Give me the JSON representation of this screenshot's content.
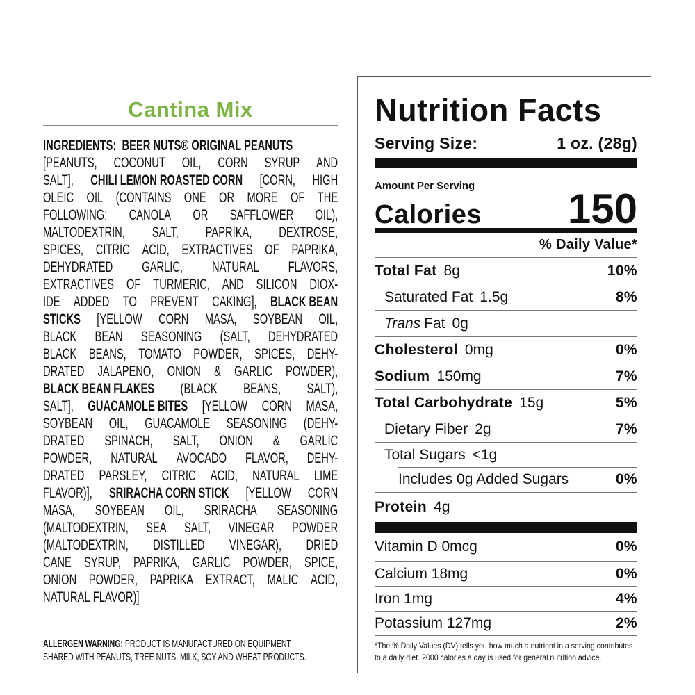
{
  "product": {
    "title": "Cantina Mix",
    "title_color": "#7cb342"
  },
  "ingredients": {
    "lines": [
      [
        {
          "t": "INGREDIENTS:  BEER NUTS® ORIGINAL PEANUTS",
          "b": true
        }
      ],
      [
        {
          "t": "[PEANUTS, COCONUT OIL, CORN SYRUP AND",
          "b": false
        }
      ],
      [
        {
          "t": "SALT],",
          "b": false
        },
        {
          "t": "CHILI LEMON ROASTED CORN",
          "b": true
        },
        {
          "t": "[CORN, HIGH",
          "b": false
        }
      ],
      [
        {
          "t": "OLEIC OIL (CONTAINS ONE OR MORE OF THE",
          "b": false
        }
      ],
      [
        {
          "t": "FOLLOWING: CANOLA OR SAFFLOWER OIL),",
          "b": false
        }
      ],
      [
        {
          "t": "MALTODEXTRIN, SALT, PAPRIKA, DEXTROSE,",
          "b": false
        }
      ],
      [
        {
          "t": "SPICES, CITRIC ACID, EXTRACTIVES OF PAPRIKA,",
          "b": false
        }
      ],
      [
        {
          "t": "DEHYDRATED GARLIC, NATURAL FLAVORS,",
          "b": false
        }
      ],
      [
        {
          "t": "EXTRACTIVES OF TURMERIC, AND SILICON DIOX-",
          "b": false
        }
      ],
      [
        {
          "t": "IDE ADDED TO PREVENT CAKING],",
          "b": false
        },
        {
          "t": "BLACK BEAN",
          "b": true
        }
      ],
      [
        {
          "t": "STICKS",
          "b": true
        },
        {
          "t": "[YELLOW CORN MASA, SOYBEAN OIL,",
          "b": false
        }
      ],
      [
        {
          "t": "BLACK BEAN SEASONING (SALT, DEHYDRATED",
          "b": false
        }
      ],
      [
        {
          "t": "BLACK BEANS, TOMATO POWDER, SPICES, DEHY-",
          "b": false
        }
      ],
      [
        {
          "t": "DRATED JALAPENO, ONION & GARLIC POWDER),",
          "b": false
        }
      ],
      [
        {
          "t": "BLACK BEAN FLAKES",
          "b": true
        },
        {
          "t": "(BLACK BEANS, SALT),",
          "b": false
        }
      ],
      [
        {
          "t": "SALT],",
          "b": false
        },
        {
          "t": "GUACAMOLE BITES",
          "b": true
        },
        {
          "t": "[YELLOW CORN MASA,",
          "b": false
        }
      ],
      [
        {
          "t": "SOYBEAN OIL, GUACAMOLE SEASONING (DEHY-",
          "b": false
        }
      ],
      [
        {
          "t": "DRATED SPINACH, SALT, ONION & GARLIC",
          "b": false
        }
      ],
      [
        {
          "t": "POWDER, NATURAL AVOCADO FLAVOR, DEHY-",
          "b": false
        }
      ],
      [
        {
          "t": "DRATED PARSLEY, CITRIC ACID, NATURAL LIME",
          "b": false
        }
      ],
      [
        {
          "t": "FLAVOR)],",
          "b": false
        },
        {
          "t": "SRIRACHA CORN STICK",
          "b": true
        },
        {
          "t": "[YELLOW CORN",
          "b": false
        }
      ],
      [
        {
          "t": "MASA, SOYBEAN OIL, SRIRACHA SEASONING",
          "b": false
        }
      ],
      [
        {
          "t": "(MALTODEXTRIN, SEA SALT, VINEGAR POWDER",
          "b": false
        }
      ],
      [
        {
          "t": "(MALTODEXTRIN, DISTILLED VINEGAR), DRIED",
          "b": false
        }
      ],
      [
        {
          "t": "CANE SYRUP, PAPRIKA, GARLIC POWDER, SPICE,",
          "b": false
        }
      ],
      [
        {
          "t": "ONION POWDER, PAPRIKA EXTRACT, MALIC ACID,",
          "b": false
        }
      ],
      [
        {
          "t": "NATURAL FLAVOR)]",
          "b": false
        }
      ]
    ]
  },
  "allergen": {
    "label": "ALLERGEN WARNING:",
    "line1": "PRODUCT IS MANUFACTURED ON EQUIPMENT",
    "line2": "SHARED WITH PEANUTS, TREE NUTS, MILK, SOY AND WHEAT PRODUCTS."
  },
  "nutrition": {
    "title": "Nutrition Facts",
    "serving_label": "Serving Size:",
    "serving_value": "1 oz. (28g)",
    "amount_per_serving": "Amount Per Serving",
    "calories_label": "Calories",
    "calories_value": "150",
    "daily_value_header": "% Daily Value*",
    "rows": [
      {
        "name": "Total Fat",
        "amount": "8g",
        "pct": "10%",
        "level": 0
      },
      {
        "name": "Saturated Fat",
        "amount": "1.5g",
        "pct": "8%",
        "level": 1
      },
      {
        "name": "Trans",
        "name_suffix": "Fat",
        "amount": "0g",
        "pct": "",
        "level": 1
      },
      {
        "name": "Cholesterol",
        "amount": "0mg",
        "pct": "0%",
        "level": 0
      },
      {
        "name": "Sodium",
        "amount": "150mg",
        "pct": "7%",
        "level": 0
      },
      {
        "name": "Total Carbohydrate",
        "amount": "15g",
        "pct": "5%",
        "level": 0
      },
      {
        "name": "Dietary Fiber",
        "amount": "2g",
        "pct": "7%",
        "level": 1
      },
      {
        "name": "Total Sugars",
        "amount": "<1g",
        "pct": "",
        "level": 1
      },
      {
        "name": "Includes 0g Added Sugars",
        "amount": "",
        "pct": "0%",
        "level": 2
      },
      {
        "name": "Protein",
        "amount": "4g",
        "pct": "",
        "level": 0
      }
    ],
    "vitamins": [
      {
        "name": "Vitamin D 0mcg",
        "pct": "0%"
      },
      {
        "name": "Calcium 18mg",
        "pct": "0%"
      },
      {
        "name": "Iron 1mg",
        "pct": "4%"
      },
      {
        "name": "Potassium 127mg",
        "pct": "2%"
      }
    ],
    "footnote_line1": "*The % Daily Values (DV) tells you how much a nutrient in a serving contributes",
    "footnote_line2": "to a daily diet. 2000 calories a day is used for general nutrition advice."
  }
}
